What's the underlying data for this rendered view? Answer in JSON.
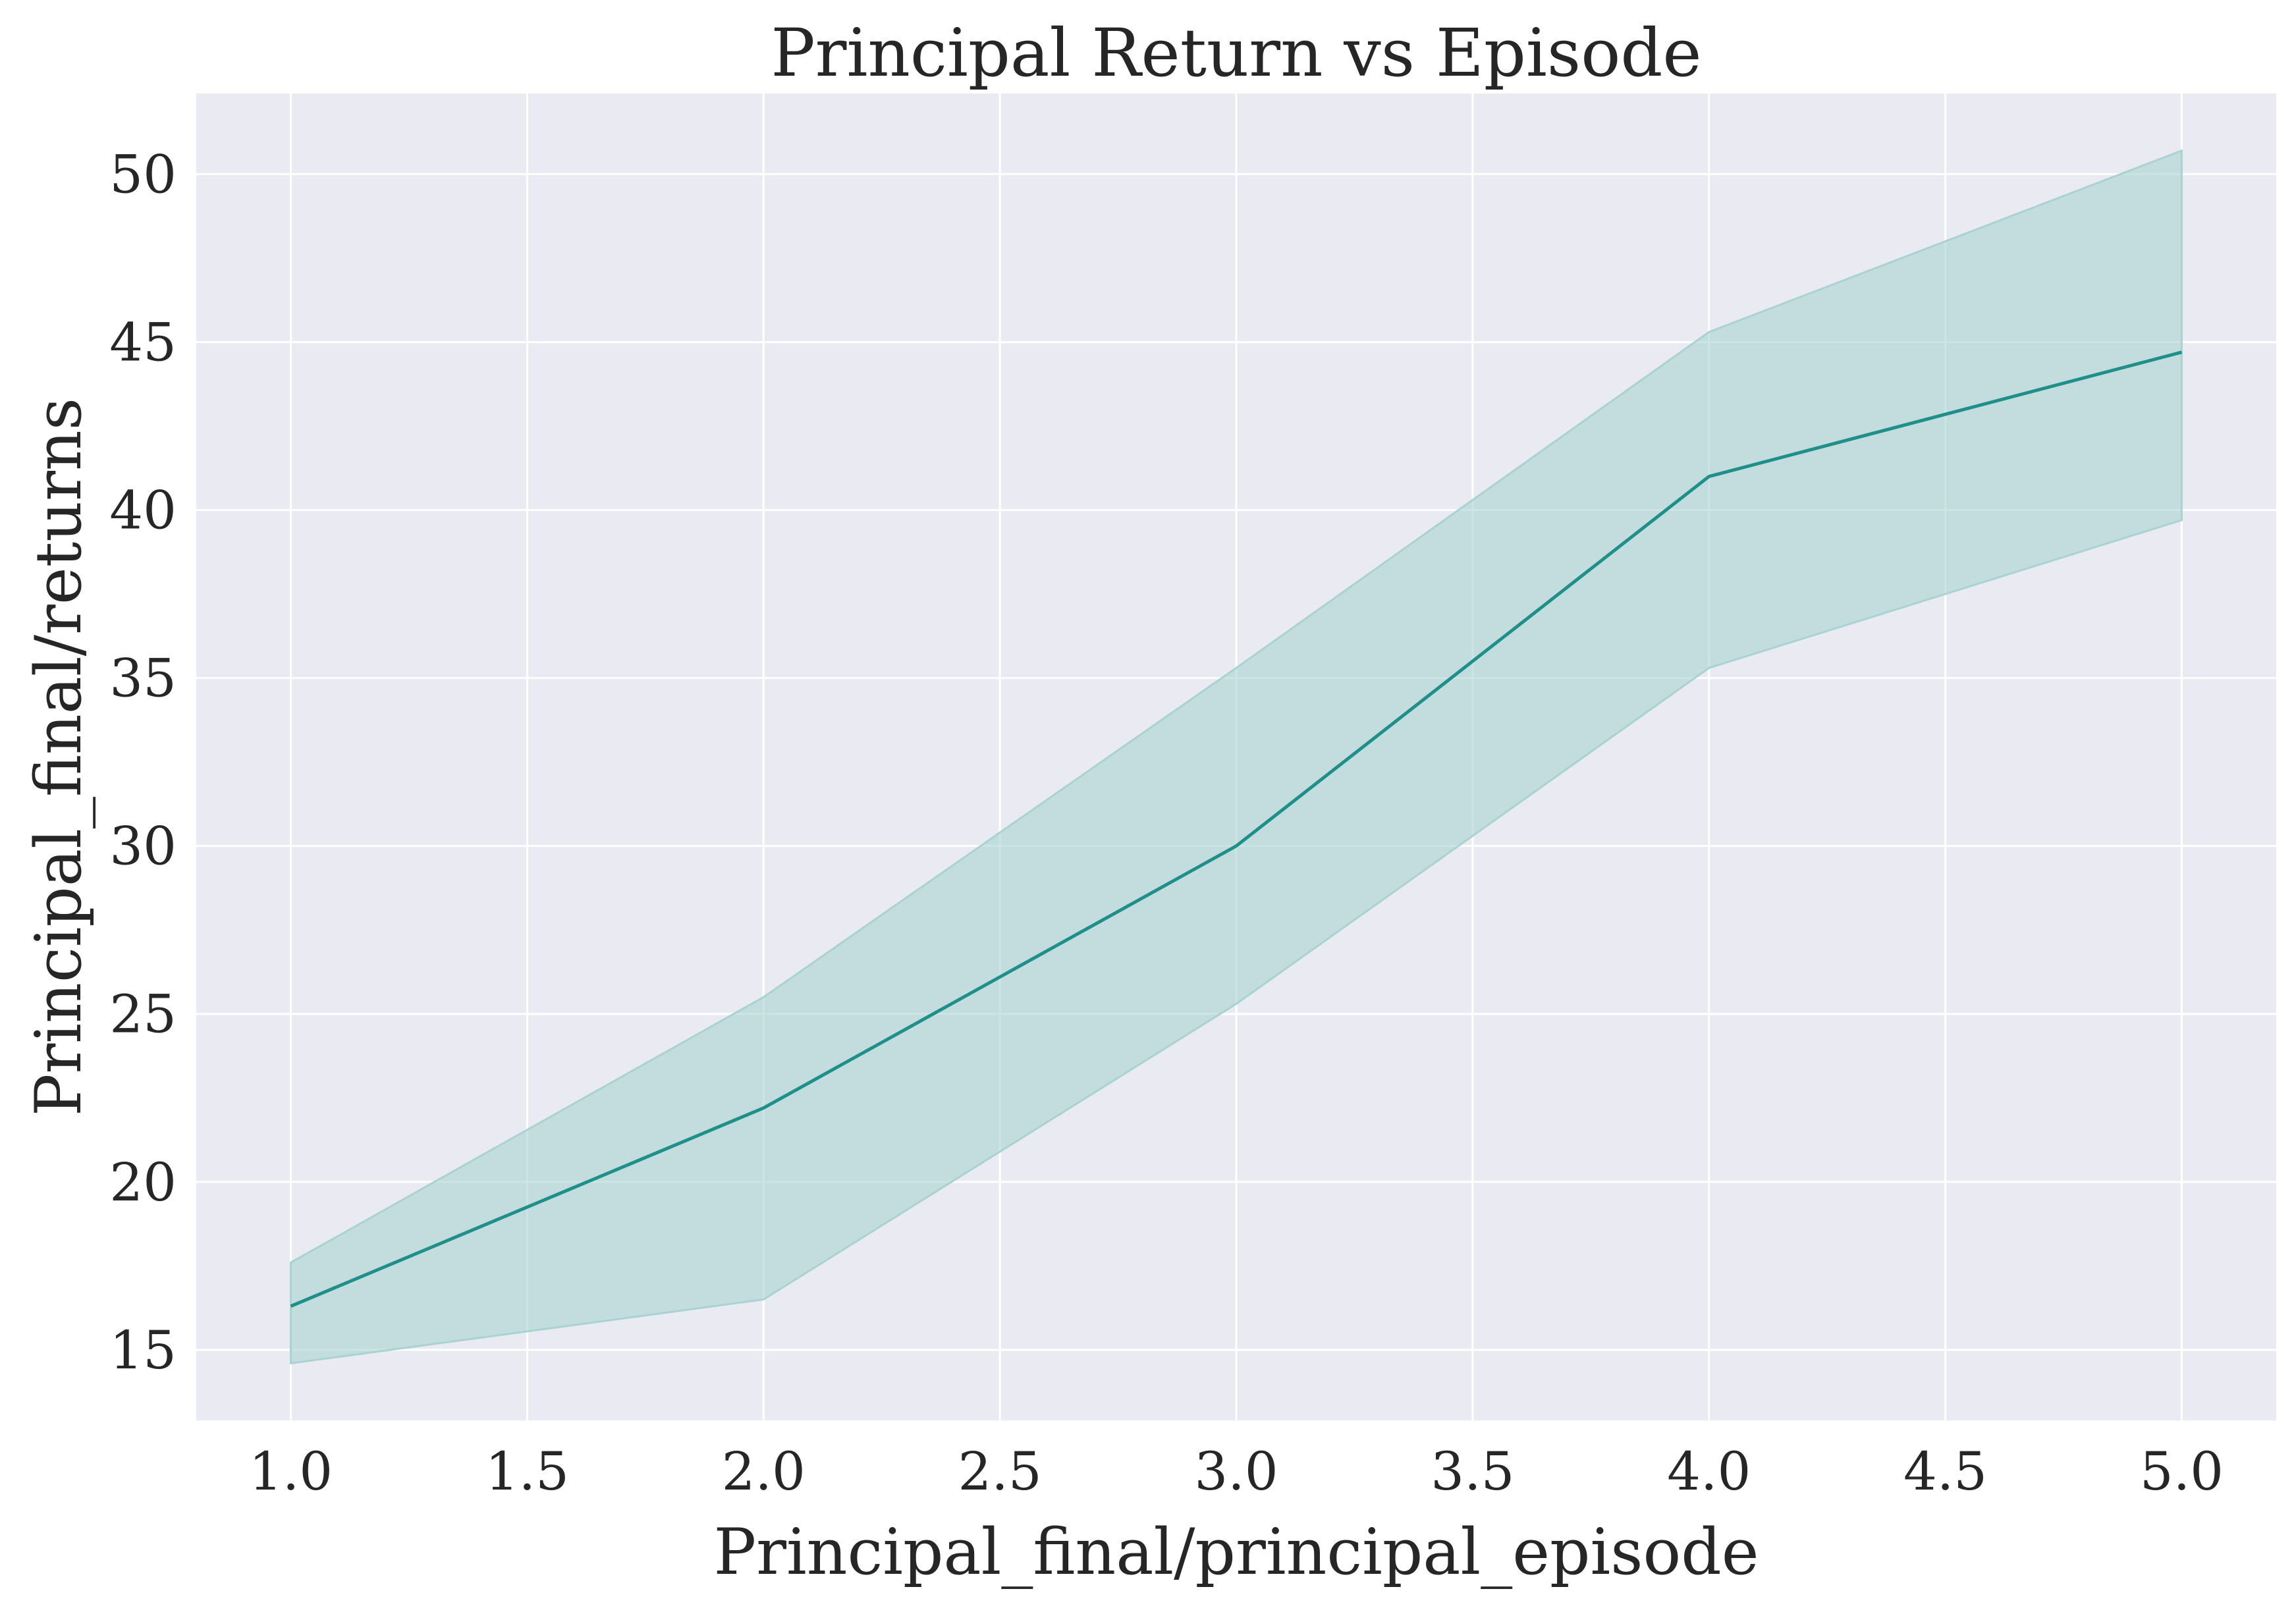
{
  "chart_data": {
    "type": "line",
    "title": "Principal Return vs Episode",
    "xlabel": "Principal_final/principal_episode",
    "ylabel": "Principal_final/returns",
    "xlim": [
      0.8,
      5.2
    ],
    "ylim": [
      12.9,
      52.4
    ],
    "xticks": [
      "1.0",
      "1.5",
      "2.0",
      "2.5",
      "3.0",
      "3.5",
      "4.0",
      "4.5",
      "5.0"
    ],
    "yticks": [
      "15",
      "20",
      "25",
      "30",
      "35",
      "40",
      "45",
      "50"
    ],
    "grid": true,
    "x": [
      1.0,
      2.0,
      3.0,
      4.0,
      5.0
    ],
    "series": [
      {
        "values": [
          16.3,
          22.2,
          30.0,
          41.0,
          44.7
        ],
        "ci_lower": [
          14.6,
          16.5,
          25.3,
          35.3,
          39.7
        ],
        "ci_upper": [
          17.6,
          25.5,
          35.3,
          45.3,
          50.7
        ],
        "color": "#1f8f8a",
        "band_color": "#a8d3d2"
      }
    ],
    "background_color": "#eaeaf2",
    "grid_color": "#ffffff"
  }
}
